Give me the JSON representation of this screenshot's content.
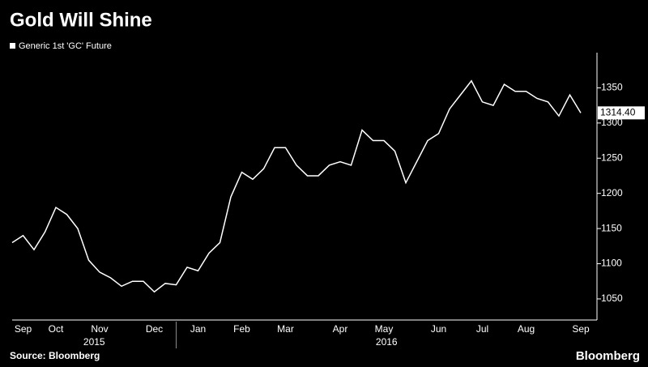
{
  "chart_data": {
    "type": "line",
    "title": "Gold Will Shine",
    "source": "Source: Bloomberg",
    "brand": "Bloomberg",
    "categories": [
      null,
      "Sep",
      null,
      null,
      "Oct",
      null,
      null,
      null,
      "Nov",
      null,
      null,
      null,
      null,
      "Dec",
      null,
      null,
      null,
      "Jan",
      null,
      null,
      null,
      "Feb",
      null,
      null,
      null,
      "Mar",
      null,
      null,
      null,
      null,
      "Apr",
      null,
      null,
      null,
      "May",
      null,
      null,
      null,
      null,
      "Jun",
      null,
      null,
      null,
      "Jul",
      null,
      null,
      null,
      "Aug",
      null,
      null,
      null,
      null,
      "Sep"
    ],
    "years": [
      "2015",
      "2016"
    ],
    "series": [
      {
        "name": "Generic 1st 'GC' Future",
        "color": "#ffffff",
        "values": [
          1130,
          1140,
          1120,
          1145,
          1180,
          1170,
          1150,
          1105,
          1088,
          1080,
          1068,
          1075,
          1075,
          1060,
          1072,
          1070,
          1095,
          1090,
          1115,
          1130,
          1195,
          1230,
          1220,
          1235,
          1265,
          1265,
          1240,
          1225,
          1225,
          1240,
          1245,
          1240,
          1290,
          1275,
          1275,
          1260,
          1215,
          1245,
          1275,
          1285,
          1320,
          1340,
          1360,
          1330,
          1325,
          1355,
          1345,
          1345,
          1335,
          1330,
          1310,
          1340,
          1314.4
        ],
        "value_labels": [
          null,
          null,
          null,
          null,
          null,
          null,
          null,
          null,
          null,
          null,
          null,
          null,
          null,
          null,
          null,
          null,
          null,
          null,
          null,
          null,
          null,
          null,
          null,
          null,
          null,
          null,
          null,
          null,
          null,
          null,
          null,
          null,
          null,
          null,
          null,
          null,
          null,
          null,
          null,
          null,
          null,
          null,
          null,
          null,
          null,
          null,
          null,
          null,
          null,
          null,
          null,
          null,
          "1314.40"
        ]
      }
    ],
    "ylim": [
      1020,
      1400
    ],
    "yticks": [
      1050,
      1100,
      1150,
      1200,
      1250,
      1300,
      1350
    ]
  }
}
